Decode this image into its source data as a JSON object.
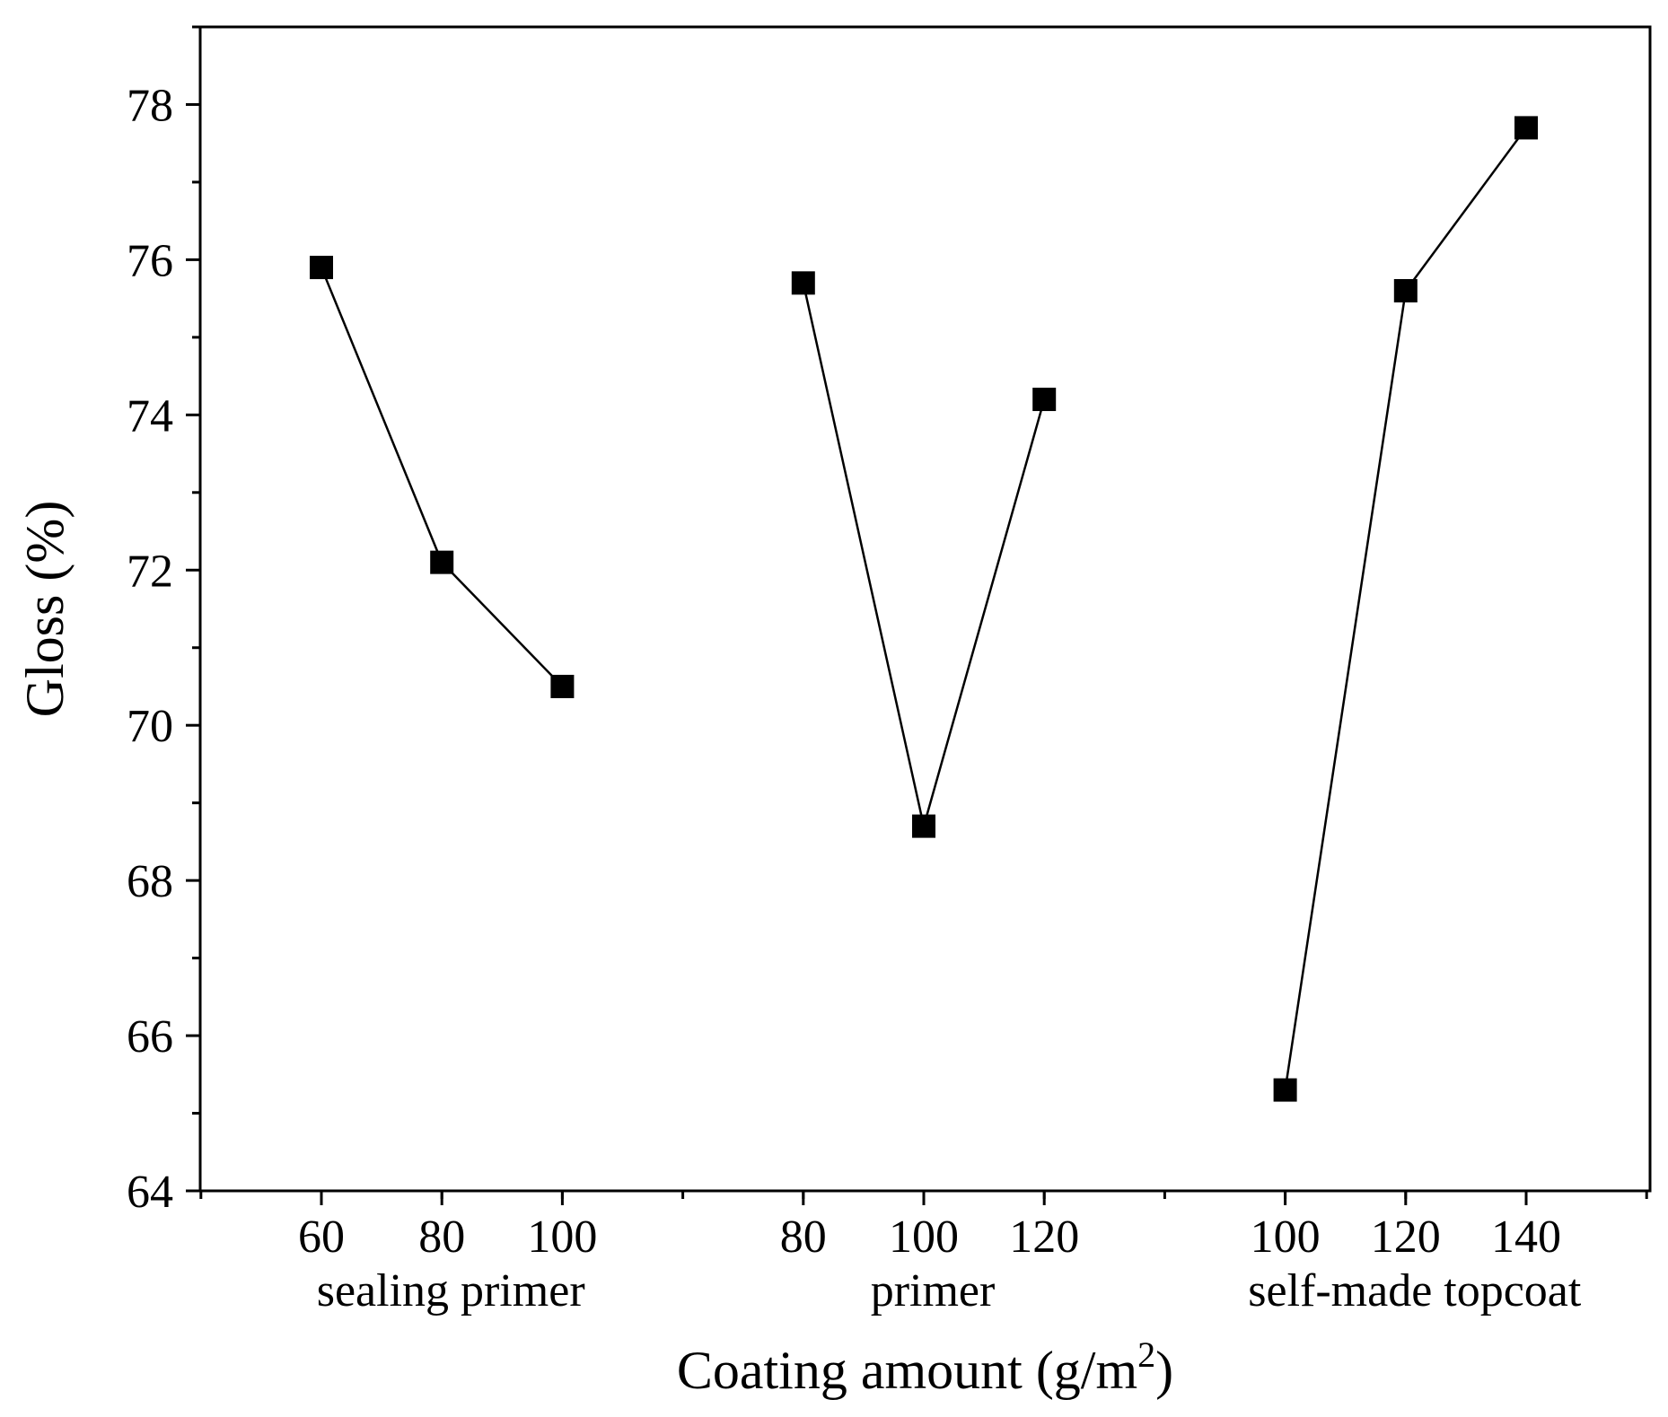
{
  "chart_data": {
    "type": "line",
    "xlabel": "Coating amount (g/m",
    "xlabel_superscript": "2",
    "xlabel_suffix": ")",
    "ylabel": "Gloss (%)",
    "ylim": [
      64,
      79
    ],
    "y_ticks": [
      64,
      66,
      68,
      70,
      72,
      74,
      76,
      78
    ],
    "grid": false,
    "marker": "square",
    "color": "#000000",
    "groups": [
      {
        "name": "sealing primer",
        "x": [
          "60",
          "80",
          "100"
        ],
        "y": [
          75.9,
          72.1,
          70.5
        ]
      },
      {
        "name": "primer",
        "x": [
          "80",
          "100",
          "120"
        ],
        "y": [
          75.7,
          68.7,
          74.2
        ]
      },
      {
        "name": "self-made topcoat",
        "x": [
          "100",
          "120",
          "140"
        ],
        "y": [
          65.3,
          75.6,
          77.7
        ]
      }
    ]
  }
}
